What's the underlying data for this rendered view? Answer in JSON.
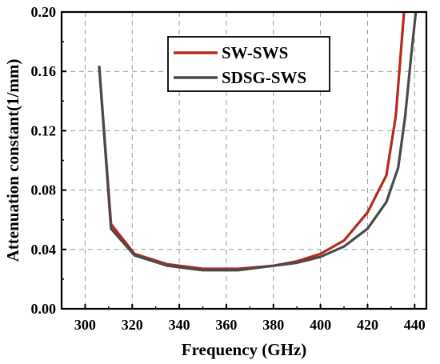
{
  "chart_data": {
    "type": "line",
    "title": "",
    "xlabel": "Frequency (GHz)",
    "ylabel": "Attenuation constant(1/mm)",
    "xlim": [
      290,
      445
    ],
    "ylim": [
      0.0,
      0.2
    ],
    "xticks": [
      300,
      320,
      340,
      360,
      380,
      400,
      420,
      440
    ],
    "xtick_labels": [
      "300",
      "320",
      "340",
      "360",
      "380",
      "400",
      "420",
      "440"
    ],
    "yticks": [
      0.0,
      0.04,
      0.08,
      0.12,
      0.16,
      0.2
    ],
    "ytick_labels": [
      "0.00",
      "0.04",
      "0.08",
      "0.12",
      "0.16",
      "0.20"
    ],
    "grid": true,
    "legend_position": "top-center",
    "series": [
      {
        "name": "SW-SWS",
        "color": "#b52a1a",
        "points": [
          [
            306,
            0.163
          ],
          [
            311,
            0.057
          ],
          [
            321,
            0.037
          ],
          [
            335,
            0.03
          ],
          [
            350,
            0.027
          ],
          [
            365,
            0.027
          ],
          [
            380,
            0.029
          ],
          [
            390,
            0.032
          ],
          [
            400,
            0.037
          ],
          [
            410,
            0.046
          ],
          [
            420,
            0.065
          ],
          [
            428,
            0.09
          ],
          [
            432,
            0.13
          ],
          [
            434,
            0.17
          ],
          [
            435.5,
            0.2
          ]
        ]
      },
      {
        "name": "SDSG-SWS",
        "color": "#4a4a4a",
        "points": [
          [
            306,
            0.163
          ],
          [
            311,
            0.054
          ],
          [
            321,
            0.036
          ],
          [
            335,
            0.029
          ],
          [
            350,
            0.026
          ],
          [
            365,
            0.026
          ],
          [
            380,
            0.029
          ],
          [
            390,
            0.031
          ],
          [
            400,
            0.035
          ],
          [
            410,
            0.042
          ],
          [
            420,
            0.054
          ],
          [
            428,
            0.072
          ],
          [
            433,
            0.095
          ],
          [
            436,
            0.13
          ],
          [
            438.5,
            0.17
          ],
          [
            440.5,
            0.2
          ]
        ]
      }
    ]
  }
}
